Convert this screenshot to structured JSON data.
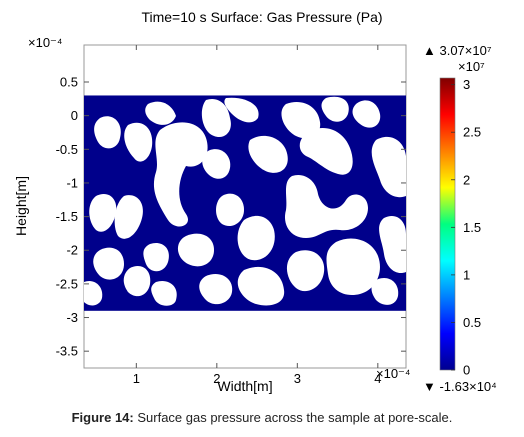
{
  "chart_data": {
    "type": "heatmap",
    "title": "Time=10 s Surface: Gas Pressure (Pa)",
    "xlabel": "Width[m]",
    "ylabel": "Height[m]",
    "x_exponent_label": "×10⁻⁴",
    "y_exponent_label": "×10⁻⁴",
    "xlim": [
      0.35,
      4.35
    ],
    "ylim": [
      -3.75,
      1.05
    ],
    "x_ticks": [
      1,
      2,
      3,
      4
    ],
    "x_tick_labels": [
      "1",
      "2",
      "3",
      "4"
    ],
    "y_ticks": [
      0.5,
      0,
      -0.5,
      -1,
      -1.5,
      -2,
      -2.5,
      -3,
      -3.5
    ],
    "y_tick_labels": [
      "0.5",
      "0",
      "-0.5",
      "-1",
      "-1.5",
      "-2",
      "-2.5",
      "-3",
      "-3.5"
    ],
    "domain_x": [
      0.35,
      4.35
    ],
    "domain_y": [
      -2.9,
      0.3
    ],
    "fill_color": "#00008b",
    "pore_color": "#ffffff",
    "colorbar": {
      "multiplier_label": "×10⁷",
      "max_label": "▲ 3.07×10⁷",
      "min_label": "▼ -1.63×10⁴",
      "ticks": [
        0,
        0.5,
        1,
        1.5,
        2,
        2.5,
        3
      ],
      "tick_labels": [
        "0",
        "0.5",
        "1",
        "1.5",
        "2",
        "2.5",
        "3"
      ],
      "range": [
        0,
        3.07
      ]
    }
  },
  "caption": {
    "label": "Figure 14:",
    "text": " Surface gas pressure across the sample at pore-scale."
  }
}
